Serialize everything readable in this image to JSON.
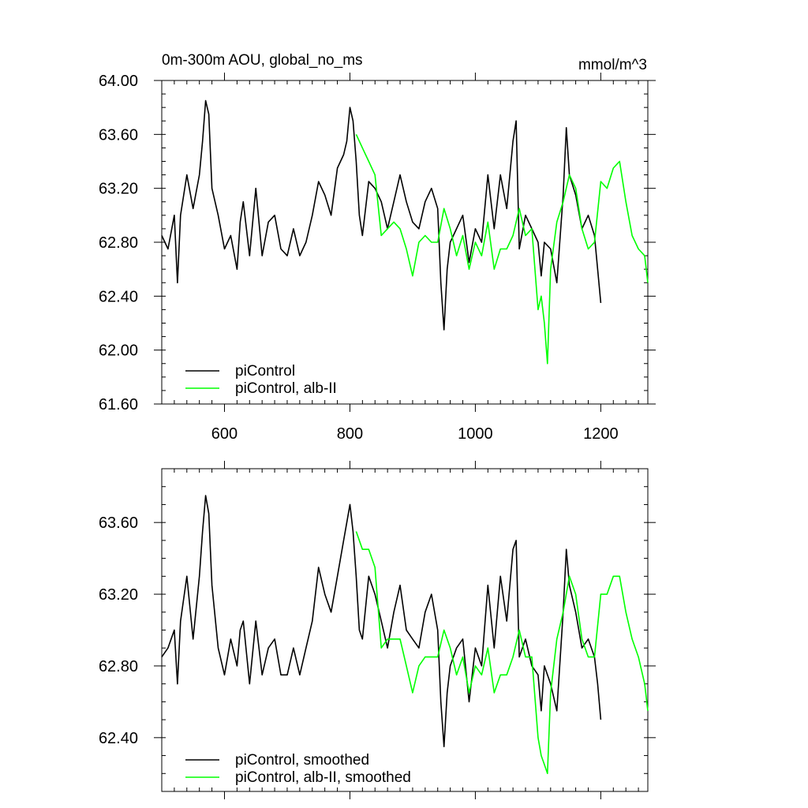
{
  "chart_data": [
    {
      "type": "line",
      "title": "0m-300m AOU, global_no_ms",
      "units": "mmol/m^3",
      "xlim": [
        500,
        1275
      ],
      "ylim": [
        61.6,
        64.0
      ],
      "x_ticks": [
        600,
        800,
        1000,
        1200
      ],
      "y_ticks": [
        "61.60",
        "62.00",
        "62.40",
        "62.80",
        "63.20",
        "63.60",
        "64.00"
      ],
      "legend_position": "bottom-left",
      "series": [
        {
          "name": "piControl",
          "color": "#000000",
          "x": [
            500,
            510,
            520,
            525,
            530,
            540,
            550,
            560,
            565,
            570,
            575,
            580,
            590,
            600,
            610,
            620,
            625,
            630,
            640,
            650,
            660,
            670,
            680,
            690,
            700,
            710,
            720,
            730,
            740,
            750,
            760,
            770,
            780,
            790,
            795,
            800,
            805,
            810,
            815,
            820,
            830,
            840,
            850,
            860,
            870,
            880,
            890,
            900,
            910,
            920,
            930,
            940,
            945,
            950,
            955,
            960,
            970,
            980,
            990,
            1000,
            1010,
            1020,
            1030,
            1040,
            1050,
            1060,
            1065,
            1070,
            1080,
            1090,
            1100,
            1105,
            1110,
            1120,
            1130,
            1140,
            1145,
            1150,
            1160,
            1170,
            1180,
            1190,
            1195,
            1200
          ],
          "y": [
            62.85,
            62.75,
            63.0,
            62.5,
            63.0,
            63.3,
            63.05,
            63.3,
            63.55,
            63.85,
            63.75,
            63.2,
            63.0,
            62.75,
            62.85,
            62.6,
            62.95,
            63.1,
            62.7,
            63.2,
            62.7,
            62.95,
            63.0,
            62.75,
            62.7,
            62.9,
            62.7,
            62.8,
            63.0,
            63.25,
            63.15,
            63.0,
            63.35,
            63.45,
            63.55,
            63.8,
            63.7,
            63.4,
            63.0,
            62.85,
            63.25,
            63.2,
            63.1,
            62.9,
            63.1,
            63.3,
            63.1,
            62.95,
            62.9,
            63.1,
            63.2,
            63.05,
            62.5,
            62.15,
            62.6,
            62.8,
            62.9,
            63.0,
            62.65,
            62.9,
            62.8,
            63.3,
            62.9,
            63.3,
            63.05,
            63.55,
            63.7,
            62.75,
            63.0,
            62.9,
            62.8,
            62.55,
            62.8,
            62.75,
            62.5,
            63.15,
            63.65,
            63.3,
            63.15,
            62.9,
            63.0,
            62.85,
            62.6,
            62.35
          ]
        },
        {
          "name": "piControl, alb-II",
          "color": "#00ff00",
          "x": [
            810,
            820,
            830,
            840,
            850,
            860,
            870,
            880,
            890,
            900,
            910,
            920,
            930,
            940,
            950,
            960,
            970,
            980,
            990,
            1000,
            1010,
            1020,
            1030,
            1040,
            1050,
            1060,
            1070,
            1080,
            1090,
            1100,
            1105,
            1110,
            1115,
            1120,
            1130,
            1140,
            1150,
            1160,
            1170,
            1180,
            1190,
            1200,
            1210,
            1220,
            1230,
            1240,
            1250,
            1260,
            1270,
            1275
          ],
          "y": [
            63.6,
            63.5,
            63.4,
            63.3,
            62.85,
            62.9,
            62.95,
            62.9,
            62.75,
            62.55,
            62.8,
            62.85,
            62.8,
            62.8,
            63.05,
            62.9,
            62.7,
            62.85,
            62.6,
            62.8,
            62.7,
            62.95,
            62.6,
            62.75,
            62.75,
            62.85,
            63.05,
            62.85,
            62.9,
            62.3,
            62.4,
            62.2,
            61.9,
            62.6,
            62.95,
            63.1,
            63.3,
            63.2,
            62.9,
            62.75,
            62.8,
            63.25,
            63.2,
            63.35,
            63.4,
            63.1,
            62.85,
            62.75,
            62.7,
            62.5
          ]
        }
      ]
    },
    {
      "type": "line",
      "xlim": [
        500,
        1275
      ],
      "ylim": [
        62.1,
        63.9
      ],
      "x_ticks": [
        600,
        800,
        1000,
        1200
      ],
      "y_ticks": [
        "62.40",
        "62.80",
        "63.20",
        "63.60"
      ],
      "legend_position": "bottom-left",
      "series": [
        {
          "name": "piControl, smoothed",
          "color": "#000000",
          "x": [
            500,
            510,
            520,
            525,
            530,
            540,
            550,
            560,
            565,
            570,
            575,
            580,
            590,
            600,
            610,
            620,
            625,
            630,
            640,
            650,
            660,
            670,
            680,
            690,
            700,
            710,
            720,
            730,
            740,
            750,
            760,
            770,
            780,
            790,
            795,
            800,
            805,
            810,
            815,
            820,
            830,
            840,
            850,
            860,
            870,
            880,
            890,
            900,
            910,
            920,
            930,
            940,
            945,
            950,
            955,
            960,
            970,
            980,
            990,
            1000,
            1010,
            1020,
            1030,
            1040,
            1050,
            1060,
            1065,
            1070,
            1080,
            1090,
            1100,
            1105,
            1110,
            1120,
            1130,
            1140,
            1145,
            1150,
            1160,
            1170,
            1180,
            1190,
            1195,
            1200
          ],
          "y": [
            62.85,
            62.9,
            63.0,
            62.7,
            63.05,
            63.3,
            62.95,
            63.3,
            63.55,
            63.75,
            63.65,
            63.25,
            62.9,
            62.75,
            62.95,
            62.8,
            63.0,
            63.05,
            62.7,
            63.05,
            62.75,
            62.9,
            62.95,
            62.75,
            62.75,
            62.9,
            62.75,
            62.9,
            63.05,
            63.35,
            63.2,
            63.1,
            63.3,
            63.5,
            63.6,
            63.7,
            63.55,
            63.3,
            63.0,
            62.95,
            63.3,
            63.2,
            63.05,
            62.9,
            63.1,
            63.25,
            63.0,
            62.95,
            62.9,
            63.1,
            63.2,
            63.0,
            62.6,
            62.35,
            62.65,
            62.8,
            62.9,
            62.95,
            62.6,
            62.9,
            62.8,
            63.25,
            62.9,
            63.3,
            63.05,
            63.45,
            63.5,
            62.85,
            62.95,
            62.8,
            62.75,
            62.55,
            62.8,
            62.7,
            62.55,
            63.1,
            63.45,
            63.25,
            63.1,
            62.9,
            62.95,
            62.85,
            62.7,
            62.5
          ]
        },
        {
          "name": "piControl, alb-II, smoothed",
          "color": "#00ff00",
          "x": [
            810,
            820,
            830,
            840,
            850,
            860,
            870,
            880,
            890,
            900,
            910,
            920,
            930,
            940,
            950,
            960,
            970,
            980,
            990,
            1000,
            1010,
            1020,
            1030,
            1040,
            1050,
            1060,
            1070,
            1080,
            1090,
            1100,
            1105,
            1110,
            1115,
            1120,
            1130,
            1140,
            1150,
            1160,
            1170,
            1180,
            1190,
            1200,
            1210,
            1220,
            1230,
            1240,
            1250,
            1260,
            1270,
            1275
          ],
          "y": [
            63.55,
            63.45,
            63.45,
            63.35,
            62.9,
            62.95,
            62.95,
            62.95,
            62.8,
            62.65,
            62.8,
            62.85,
            62.85,
            62.85,
            63.0,
            62.9,
            62.75,
            62.85,
            62.65,
            62.8,
            62.75,
            62.9,
            62.65,
            62.75,
            62.75,
            62.85,
            63.0,
            62.85,
            62.85,
            62.4,
            62.3,
            62.25,
            62.2,
            62.65,
            62.95,
            63.1,
            63.3,
            63.2,
            62.95,
            62.85,
            62.85,
            63.2,
            63.2,
            63.3,
            63.3,
            63.1,
            62.95,
            62.85,
            62.7,
            62.55
          ]
        }
      ]
    }
  ]
}
